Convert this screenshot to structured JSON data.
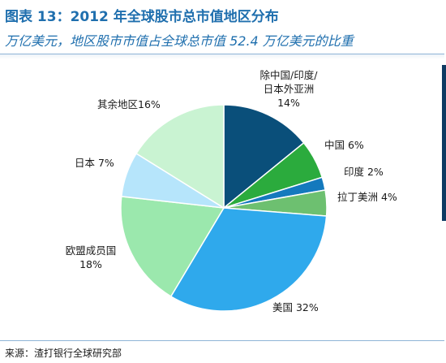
{
  "figure": {
    "title": "图表 13：2012 年全球股市总市值地区分布",
    "subtitle": "万亿美元，地区股市市值占全球总市值 52.4 万亿美元的比重",
    "source": "来源：渣打银行全球研究部"
  },
  "colors": {
    "title": "#1f6fae",
    "panel_border": "#8fb4d6",
    "right_rule": "#0e3a62"
  },
  "chart_data": {
    "type": "pie",
    "title": "图表 13：2012 年全球股市总市值地区分布",
    "subtitle": "万亿美元，地区股市市值占全球总市值 52.4 万亿美元的比重",
    "start_angle_deg": 0,
    "direction": "clockwise",
    "legend": "none",
    "slices": [
      {
        "label_lines": [
          "除中国/印度/",
          "日本外亚洲",
          "14%"
        ],
        "value": 14,
        "unit": "%",
        "color": "#0a4f7a"
      },
      {
        "label_lines": [
          "中国  6%"
        ],
        "value": 6,
        "unit": "%",
        "color": "#2bab3d"
      },
      {
        "label_lines": [
          "印度  2%"
        ],
        "value": 2,
        "unit": "%",
        "color": "#1479bd"
      },
      {
        "label_lines": [
          "拉丁美洲 4%"
        ],
        "value": 4,
        "unit": "%",
        "color": "#6dc070"
      },
      {
        "label_lines": [
          "美国 32%"
        ],
        "value": 32,
        "unit": "%",
        "color": "#2fa9ec"
      },
      {
        "label_lines": [
          "欧盟成员国",
          "18%"
        ],
        "value": 18,
        "unit": "%",
        "color": "#9be8ad"
      },
      {
        "label_lines": [
          "日本 7%"
        ],
        "value": 7,
        "unit": "%",
        "color": "#b6e5fb"
      },
      {
        "label_lines": [
          "其余地区16%"
        ],
        "value": 16,
        "unit": "%",
        "color": "#c9f3d2"
      }
    ]
  }
}
